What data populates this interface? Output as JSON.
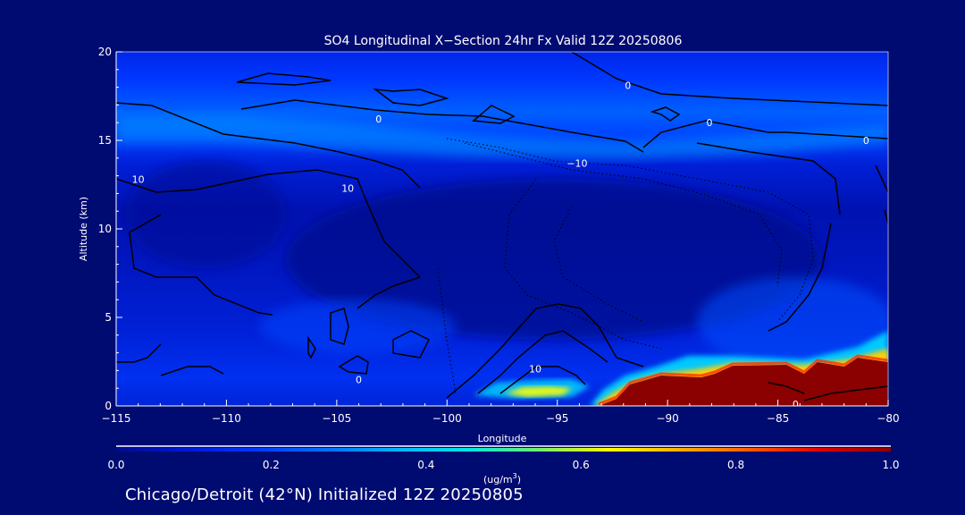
{
  "chart_data": {
    "type": "heatmap",
    "title": "SO4 Longitudinal X−Section 24hr  Fx Valid 12Z 20250806",
    "xlabel": "Longitude",
    "ylabel": "Altitude (km)",
    "xlim": [
      -115,
      -80
    ],
    "ylim": [
      0,
      20
    ],
    "x_ticks": [
      -115,
      -110,
      -105,
      -100,
      -95,
      -90,
      -85,
      -80
    ],
    "x_tick_labels": [
      "−115",
      "−110",
      "−105",
      "−100",
      "−95",
      "−90",
      "−85",
      "−80"
    ],
    "y_ticks": [
      0,
      5,
      10,
      15,
      20
    ],
    "y_tick_labels": [
      "0",
      "5",
      "10",
      "15",
      "20"
    ],
    "colorbar": {
      "label_base": "(ug/m",
      "label_exp": "3",
      "label_close": ")",
      "range": [
        0.0,
        1.0
      ],
      "ticks": [
        0.0,
        0.2,
        0.4,
        0.6,
        0.8,
        1.0
      ],
      "tick_labels": [
        "0.0",
        "0.2",
        "0.4",
        "0.6",
        "0.8",
        "1.0"
      ],
      "colors": [
        "#000a8c",
        "#0018d8",
        "#0038ff",
        "#0070ff",
        "#00b4ff",
        "#00e6e6",
        "#70f070",
        "#ffff00",
        "#ffb000",
        "#ff5a00",
        "#e10000",
        "#8b0000"
      ]
    },
    "high_concentration_regions": [
      {
        "name": "upper-layer",
        "lon": [
          -115,
          -80
        ],
        "alt_km": [
          14,
          16.5
        ],
        "value": 0.3
      },
      {
        "name": "surface-plume-west",
        "lon": [
          -98.5,
          -95
        ],
        "alt_km": [
          0.4,
          1.3
        ],
        "value": 0.6
      },
      {
        "name": "surface-plume-east",
        "lon": [
          -91,
          -80
        ],
        "alt_km": [
          0,
          2.5
        ],
        "value": 1.0
      }
    ],
    "contour_labels": [
      {
        "text": "0",
        "lon": -91.8,
        "alt_km": 18.1
      },
      {
        "text": "0",
        "lon": -103.1,
        "alt_km": 16.2
      },
      {
        "text": "0",
        "lon": -88.1,
        "alt_km": 16.0
      },
      {
        "text": "0",
        "lon": -81.0,
        "alt_km": 15.0
      },
      {
        "text": "−10",
        "lon": -94.1,
        "alt_km": 13.7
      },
      {
        "text": "10",
        "lon": -114.0,
        "alt_km": 12.8
      },
      {
        "text": "10",
        "lon": -104.5,
        "alt_km": 12.3
      },
      {
        "text": "10",
        "lon": -96.0,
        "alt_km": 2.1
      },
      {
        "text": "0",
        "lon": -104.0,
        "alt_km": 1.5
      },
      {
        "text": "0",
        "lon": -84.2,
        "alt_km": 0.1
      }
    ]
  },
  "footer": "Chicago/Detroit (42°N) Initialized 12Z 20250805"
}
